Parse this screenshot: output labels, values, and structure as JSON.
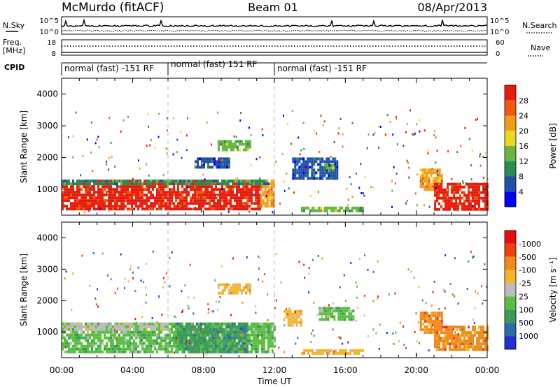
{
  "header": {
    "station": "McMurdo (fitACF)",
    "beam": "Beam 01",
    "date": "08/Apr/2013"
  },
  "strips": {
    "nsky_label": "N.Sky",
    "nsky_ticks": [
      "10^5",
      "10^0"
    ],
    "nsearch_label": "N.Search",
    "freq_label": "Freq.",
    "freq_unit": "[MHz]",
    "freq_ticks": [
      "18",
      "8"
    ],
    "nave_label": "Nave",
    "nave_ticks": [
      "60",
      "0"
    ],
    "cpid_label": "CPID",
    "cpid_segments": [
      {
        "label": "normal (fast) -151 RF",
        "start_h": 0,
        "end_h": 6
      },
      {
        "label": "normal (fast) 151 RF",
        "start_h": 6,
        "end_h": 12
      },
      {
        "label": "normal (fast) -151 RF",
        "start_h": 12,
        "end_h": 24
      }
    ]
  },
  "chart_data": [
    {
      "type": "heatmap",
      "name": "power",
      "ylabel": "Slant Range [km]",
      "yticks": [
        "1000",
        "2000",
        "3000",
        "4000"
      ],
      "ylim": [
        180,
        4500
      ],
      "xlim": [
        0,
        24
      ],
      "colorbar_label": "Power [dB]",
      "colorbar_ticks": [
        "4",
        "8",
        "12",
        "16",
        "20",
        "24",
        "28"
      ],
      "colors": [
        "#0000ff",
        "#2050a8",
        "#2a8a50",
        "#6ab440",
        "#e8d820",
        "#f49a1a",
        "#f05a10",
        "#e81c0c"
      ],
      "regions": [
        {
          "t0": 0.0,
          "t1": 11.2,
          "r0": 400,
          "r1": 1300,
          "c": 7
        },
        {
          "t0": 11.2,
          "t1": 12.0,
          "r0": 500,
          "r1": 1300,
          "c": 5
        },
        {
          "t0": 0.0,
          "t1": 11.5,
          "r0": 1200,
          "r1": 1300,
          "c": 2
        },
        {
          "t0": 8.8,
          "t1": 10.6,
          "r0": 2200,
          "r1": 2550,
          "c": 3
        },
        {
          "t0": 13.0,
          "t1": 15.5,
          "r0": 1300,
          "r1": 2000,
          "c": 1
        },
        {
          "t0": 14.8,
          "t1": 15.3,
          "r0": 1600,
          "r1": 1800,
          "c": 3
        },
        {
          "t0": 20.2,
          "t1": 21.5,
          "r0": 1000,
          "r1": 1650,
          "c": 5
        },
        {
          "t0": 21.0,
          "t1": 24.0,
          "r0": 400,
          "r1": 1200,
          "c": 7
        },
        {
          "t0": 7.5,
          "t1": 9.5,
          "r0": 1700,
          "r1": 2000,
          "c": 1
        },
        {
          "t0": 13.5,
          "t1": 17.0,
          "r0": 300,
          "r1": 450,
          "c": 3
        }
      ]
    },
    {
      "type": "heatmap",
      "name": "velocity",
      "ylabel": "Slant Range [km]",
      "yticks": [
        "1000",
        "2000",
        "3000",
        "4000"
      ],
      "ylim": [
        180,
        4500
      ],
      "xlim": [
        0,
        24
      ],
      "xlabel": "Time UT",
      "xticks": [
        "00:00",
        "04:00",
        "08:00",
        "12:00",
        "16:00",
        "20:00",
        "00:00"
      ],
      "colorbar_label": "Velocity [m s⁻¹]",
      "colorbar_ticks": [
        "1000",
        "500",
        "100",
        "25",
        "-25",
        "-100",
        "-500",
        "-1000"
      ],
      "colors": [
        "#1f2fd0",
        "#2c6aa8",
        "#3a9a5a",
        "#58c040",
        "#bcbcbc",
        "#f5b52a",
        "#f08a18",
        "#f04010",
        "#e80c0c"
      ],
      "regions": [
        {
          "t0": 0.0,
          "t1": 12.0,
          "r0": 400,
          "r1": 1300,
          "c": 3
        },
        {
          "t0": 6.5,
          "t1": 10.5,
          "r0": 400,
          "r1": 1300,
          "c": 2
        },
        {
          "t0": 0.0,
          "t1": 6.0,
          "r0": 1100,
          "r1": 1300,
          "c": 4
        },
        {
          "t0": 8.8,
          "t1": 10.6,
          "r0": 2200,
          "r1": 2550,
          "c": 5
        },
        {
          "t0": 14.5,
          "t1": 16.5,
          "r0": 1400,
          "r1": 1800,
          "c": 3
        },
        {
          "t0": 20.2,
          "t1": 21.5,
          "r0": 1000,
          "r1": 1650,
          "c": 6
        },
        {
          "t0": 21.0,
          "t1": 24.0,
          "r0": 400,
          "r1": 1200,
          "c": 6
        },
        {
          "t0": 12.5,
          "t1": 13.5,
          "r0": 1200,
          "r1": 1700,
          "c": 5
        },
        {
          "t0": 13.5,
          "t1": 17.0,
          "r0": 300,
          "r1": 450,
          "c": 5
        }
      ]
    }
  ]
}
